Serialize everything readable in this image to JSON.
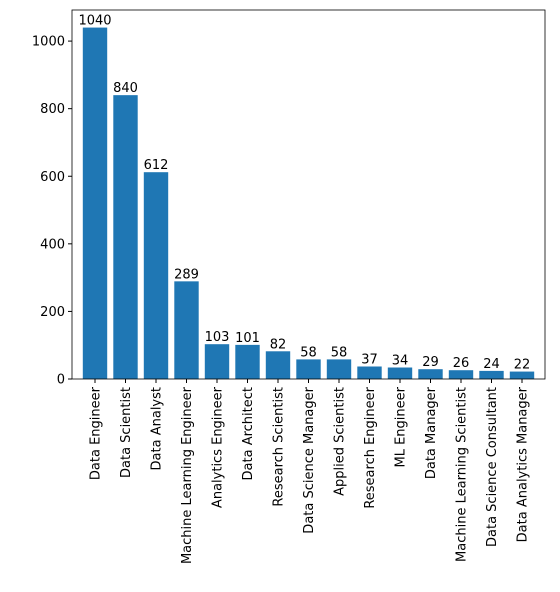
{
  "chart_data": {
    "type": "bar",
    "categories": [
      "Data Engineer",
      "Data Scientist",
      "Data Analyst",
      "Machine Learning Engineer",
      "Analytics Engineer",
      "Data Architect",
      "Research Scientist",
      "Data Science Manager",
      "Applied Scientist",
      "Research Engineer",
      "ML Engineer",
      "Data Manager",
      "Machine Learning Scientist",
      "Data Science Consultant",
      "Data Analytics Manager"
    ],
    "values": [
      1040,
      840,
      612,
      289,
      103,
      101,
      82,
      58,
      58,
      37,
      34,
      29,
      26,
      24,
      22
    ],
    "color": "#1f77b4",
    "ylim": [
      0,
      1092
    ],
    "yticks": [
      0,
      200,
      400,
      600,
      800,
      1000
    ],
    "grid": false
  }
}
